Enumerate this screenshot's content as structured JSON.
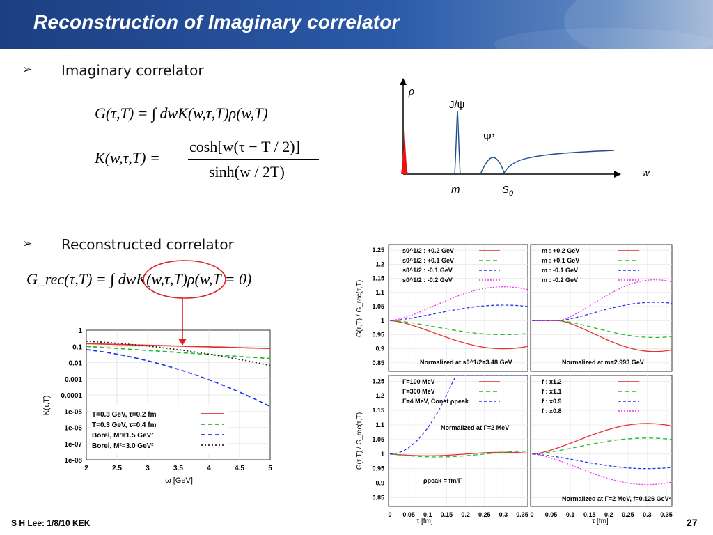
{
  "slide": {
    "title": "Reconstruction of Imaginary correlator",
    "footer": "S H Lee: 1/8/10 KEK",
    "page_number": "27"
  },
  "bullets": [
    {
      "mark": "➢",
      "text": "Imaginary correlator"
    },
    {
      "mark": "➢",
      "text": "Reconstructed correlator"
    }
  ],
  "formulas": {
    "G": "G(τ,T) = ∫ dwK(w,τ,T)ρ(w,T)",
    "K_left": "K(w,τ,T) =",
    "K_num": "cosh[w(τ − T / 2)]",
    "K_den": "sinh(w / 2T)",
    "Grec": "G_rec(τ,T) = ∫ dwK(w,τ,T)ρ(w,T = 0)"
  },
  "spectral": {
    "y_label": "ρ",
    "x_label": "w",
    "peak_label": "J/ψ",
    "psi_prime_label": "Ψ’",
    "m_label": "m",
    "s0_label": "S",
    "s0_sub": "0"
  },
  "kernel_plot": {
    "y_axis_label": "K(τ,T)",
    "x_axis_label": "ω [GeV]",
    "y_ticks": [
      "1",
      "0.1",
      "0.01",
      "0.001",
      "0.0001",
      "1e-05",
      "1e-06",
      "1e-07",
      "1e-08"
    ],
    "x_ticks": [
      "2",
      "2.5",
      "3",
      "3.5",
      "4",
      "4.5",
      "5"
    ],
    "legend": [
      {
        "text": "T=0.3 GeV, τ=0.2 fm",
        "color": "#e8302e"
      },
      {
        "text": "T=0.3 GeV, τ=0.4 fm",
        "color": "#22bb22"
      },
      {
        "text": "Borel, M²=1.5 GeV²",
        "color": "#2233ee"
      },
      {
        "text": "Borel, M²=3.0 GeV²",
        "color": "#222222"
      }
    ]
  },
  "ratio_plots": {
    "y_axis_label": "G(τ,T) / G_rec(τ,T)",
    "x_axis_label": "τ [fm]",
    "y_ticks": [
      "1.25",
      "1.2",
      "1.15",
      "1.1",
      "1.05",
      "1",
      "0.95",
      "0.9",
      "0.85"
    ],
    "x_ticks": [
      "0",
      "0.05",
      "0.1",
      "0.15",
      "0.2",
      "0.25",
      "0.3",
      "0.35"
    ],
    "panels": [
      {
        "legend": [
          "s0^1/2 : +0.2 GeV",
          "s0^1/2 : +0.1 GeV",
          "s0^1/2 : -0.1 GeV",
          "s0^1/2 : -0.2 GeV"
        ],
        "note": "Normalized at  s0^1/2=3.48 GeV"
      },
      {
        "legend": [
          "m : +0.2 GeV",
          "m : +0.1 GeV",
          "m : -0.1 GeV",
          "m : -0.2 GeV"
        ],
        "note": "Normalized at  m=2.993 GeV"
      },
      {
        "legend": [
          "Γ=100 MeV",
          "Γ=300 MeV",
          "Γ=4 MeV, Const ρpeak"
        ],
        "note": "Normalized at  Γ=2 MeV",
        "note2": "ρpeak = fm/Γ"
      },
      {
        "legend": [
          "f : x1.2",
          "f : x1.1",
          "f : x0.9",
          "f : x0.8"
        ],
        "note": "Normalized at  Γ=2 MeV, f=0.126 GeV²"
      }
    ]
  },
  "colors": {
    "red": "#e8302e",
    "green": "#22bb22",
    "blue": "#2233ee",
    "magenta": "#ee33ee",
    "black": "#222222",
    "ellipse": "#dd2222",
    "title_bg": "#1c3f82"
  }
}
